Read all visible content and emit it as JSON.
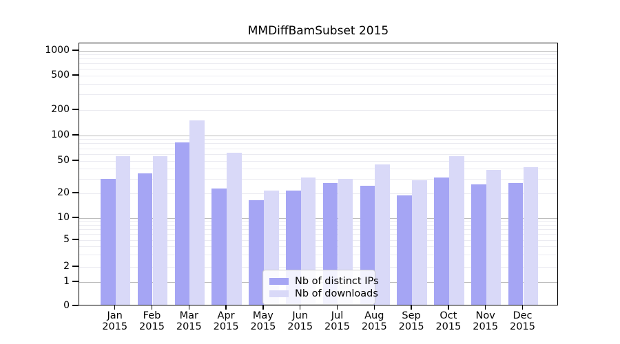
{
  "title": "MMDiffBamSubset 2015",
  "chart_data": {
    "type": "bar",
    "title": "MMDiffBamSubset 2015",
    "xlabel": "",
    "ylabel": "",
    "yscale": "log-like",
    "yticks": [
      0,
      1,
      2,
      5,
      10,
      20,
      50,
      100,
      200,
      500,
      1000
    ],
    "ylim": [
      0,
      1200
    ],
    "grid": true,
    "legend_position": "lower center",
    "categories": [
      "Jan",
      "Feb",
      "Mar",
      "Apr",
      "May",
      "Jun",
      "Jul",
      "Aug",
      "Sep",
      "Oct",
      "Nov",
      "Dec"
    ],
    "category_year": "2015",
    "series": [
      {
        "name": "Nb of distinct IPs",
        "color": "#a5a5f4",
        "values": [
          29,
          34,
          80,
          22,
          16,
          21,
          26,
          24,
          18,
          30,
          25,
          26
        ]
      },
      {
        "name": "Nb of downloads",
        "color": "#d9d9f8",
        "values": [
          55,
          55,
          145,
          60,
          21,
          30,
          29,
          44,
          28,
          55,
          37,
          40
        ]
      }
    ]
  },
  "colors": {
    "major_gridline": "#bcbcbc",
    "minor_gridline": "#ebebf1",
    "axis": "#000000",
    "background": "#ffffff"
  }
}
